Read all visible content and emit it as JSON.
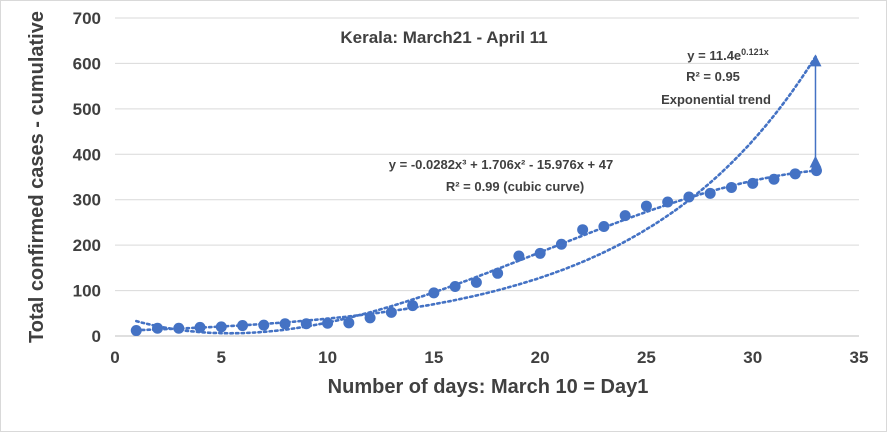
{
  "chart_data": {
    "type": "scatter",
    "title": "Kerala: March21 - April 11",
    "xlabel": "Number of days: March 10 = Day1",
    "ylabel": "Total confirmed cases - cumulative",
    "xlim": [
      0,
      35
    ],
    "ylim": [
      0,
      700
    ],
    "xticks": [
      0,
      5,
      10,
      15,
      20,
      25,
      30,
      35
    ],
    "yticks": [
      0,
      100,
      200,
      300,
      400,
      500,
      600,
      700
    ],
    "grid": "horizontal",
    "series": [
      {
        "color": "#4472c4",
        "x": [
          1,
          2,
          3,
          4,
          5,
          6,
          7,
          8,
          9,
          10,
          11,
          12,
          13,
          14,
          15,
          16,
          17,
          18,
          19,
          20,
          21,
          22,
          23,
          24,
          25,
          26,
          27,
          28,
          29,
          30,
          31,
          32,
          33
        ],
        "y": [
          12,
          17,
          17,
          19,
          20,
          23,
          24,
          27,
          27,
          28,
          29,
          40,
          52,
          67,
          95,
          109,
          118,
          138,
          176,
          182,
          202,
          234,
          241,
          265,
          286,
          295,
          306,
          314,
          327,
          336,
          345,
          357,
          364
        ]
      }
    ],
    "trendlines": [
      {
        "type": "polynomial",
        "color": "#4472c4",
        "equation": "y = -0.0282x³ + 1.706x² - 15.976x + 47",
        "r2_label": "R² = 0.99 (cubic curve)",
        "coefficients": [
          47,
          -15.976,
          1.706,
          -0.0282
        ],
        "x_range": [
          1,
          33
        ]
      },
      {
        "type": "exponential",
        "color": "#4472c4",
        "equation_base": "y = 11.4e",
        "equation_exponent": "0.121x",
        "r2_label": "R² = 0.95",
        "label": "Exponential trend",
        "a": 11.4,
        "b": 0.121,
        "x_range": [
          1,
          33
        ]
      }
    ],
    "annotation_arrow": {
      "x": 33,
      "y_from": 364,
      "y_to": 620
    }
  }
}
